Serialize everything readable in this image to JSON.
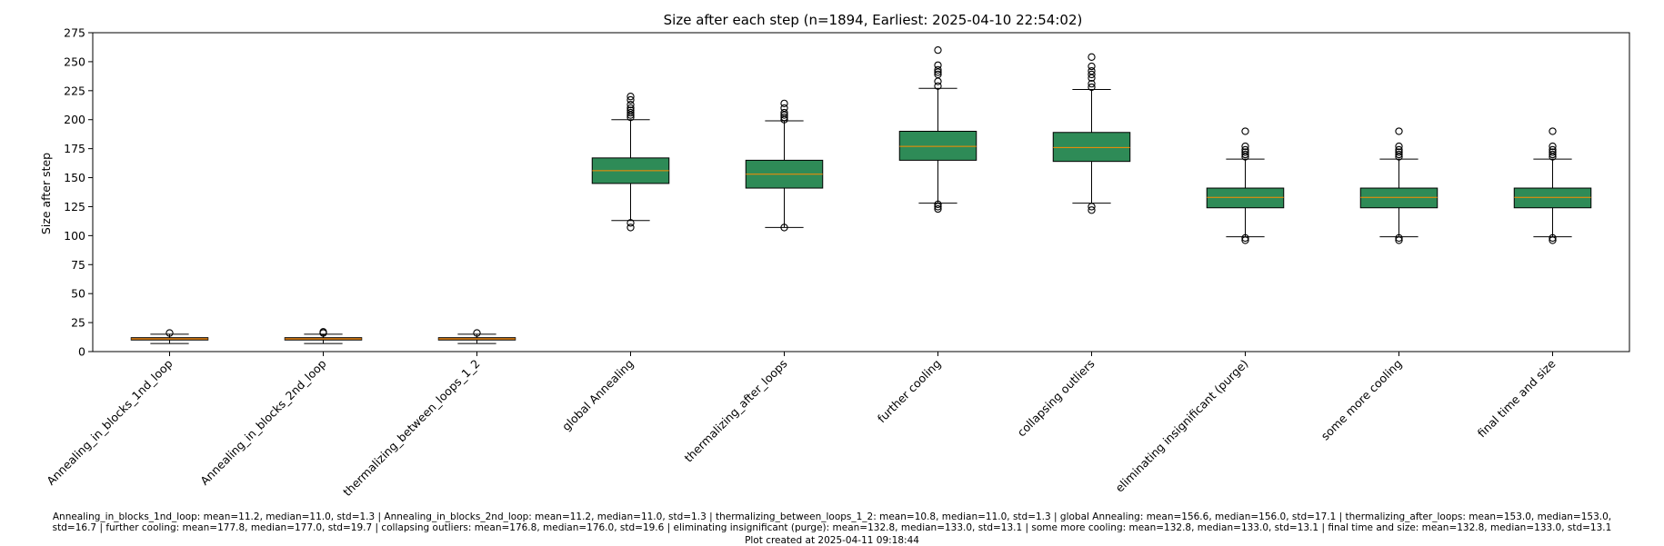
{
  "chart_data": {
    "type": "box",
    "title": "Size after each step (n=1894, Earliest: 2025-04-10 22:54:02)",
    "xlabel": "",
    "ylabel": "Size after step",
    "ylim": [
      0,
      275
    ],
    "yticks": [
      0,
      25,
      50,
      75,
      100,
      125,
      150,
      175,
      200,
      225,
      250,
      275
    ],
    "grid": false,
    "categories": [
      "Annealing_in_blocks_1nd_loop",
      "Annealing_in_blocks_2nd_loop",
      "thermalizing_between_loops_1_2",
      "global Annealing",
      "thermalizing_after_loops",
      "further cooling",
      "collapsing outliers",
      "eliminating insignificant (purge)",
      "some more cooling",
      "final time and size"
    ],
    "boxes": [
      {
        "whislo": 7,
        "q1": 10,
        "med": 11,
        "q3": 12,
        "whishi": 15,
        "fliers": [
          16
        ],
        "color": "#b87333"
      },
      {
        "whislo": 7,
        "q1": 10,
        "med": 11,
        "q3": 12,
        "whishi": 15,
        "fliers": [
          16,
          17
        ],
        "color": "#b87333"
      },
      {
        "whislo": 7,
        "q1": 10,
        "med": 11,
        "q3": 12,
        "whishi": 15,
        "fliers": [
          16
        ],
        "color": "#b87333"
      },
      {
        "whislo": 113,
        "q1": 145,
        "med": 156,
        "q3": 167,
        "whishi": 200,
        "fliers": [
          107,
          111,
          202,
          204,
          206,
          208,
          210,
          213,
          217,
          220
        ],
        "color": "#2e8b57"
      },
      {
        "whislo": 107,
        "q1": 141,
        "med": 153,
        "q3": 165,
        "whishi": 199,
        "fliers": [
          107,
          200,
          202,
          204,
          206,
          210,
          214
        ],
        "color": "#2e8b57"
      },
      {
        "whislo": 128,
        "q1": 165,
        "med": 177,
        "q3": 190,
        "whishi": 227,
        "fliers": [
          123,
          125,
          127,
          229,
          233,
          239,
          241,
          243,
          247,
          260
        ],
        "color": "#2e8b57"
      },
      {
        "whislo": 128,
        "q1": 164,
        "med": 176,
        "q3": 189,
        "whishi": 226,
        "fliers": [
          122,
          125,
          228,
          231,
          236,
          239,
          242,
          246,
          254
        ],
        "color": "#2e8b57"
      },
      {
        "whislo": 99,
        "q1": 124,
        "med": 133,
        "q3": 141,
        "whishi": 166,
        "fliers": [
          96,
          98,
          168,
          170,
          172,
          174,
          177,
          190
        ],
        "color": "#2e8b57"
      },
      {
        "whislo": 99,
        "q1": 124,
        "med": 133,
        "q3": 141,
        "whishi": 166,
        "fliers": [
          96,
          98,
          168,
          170,
          172,
          174,
          177,
          190
        ],
        "color": "#2e8b57"
      },
      {
        "whislo": 99,
        "q1": 124,
        "med": 133,
        "q3": 141,
        "whishi": 166,
        "fliers": [
          96,
          98,
          168,
          170,
          172,
          174,
          177,
          190
        ],
        "color": "#2e8b57"
      }
    ],
    "median_color": "#ff8c00"
  },
  "footer": {
    "stats_line1": "Annealing_in_blocks_1nd_loop: mean=11.2, median=11.0, std=1.3 | Annealing_in_blocks_2nd_loop: mean=11.2, median=11.0, std=1.3 | thermalizing_between_loops_1_2: mean=10.8, median=11.0, std=1.3 | global Annealing: mean=156.6, median=156.0, std=17.1 | thermalizing_after_loops: mean=153.0, median=153.0,",
    "stats_line2": "std=16.7 | further cooling: mean=177.8, median=177.0, std=19.7 | collapsing outliers: mean=176.8, median=176.0, std=19.6 | eliminating insignificant (purge): mean=132.8, median=133.0, std=13.1 | some more cooling: mean=132.8, median=133.0, std=13.1 | final time and size: mean=132.8, median=133.0, std=13.1",
    "created": "Plot created at 2025-04-11 09:18:44"
  }
}
